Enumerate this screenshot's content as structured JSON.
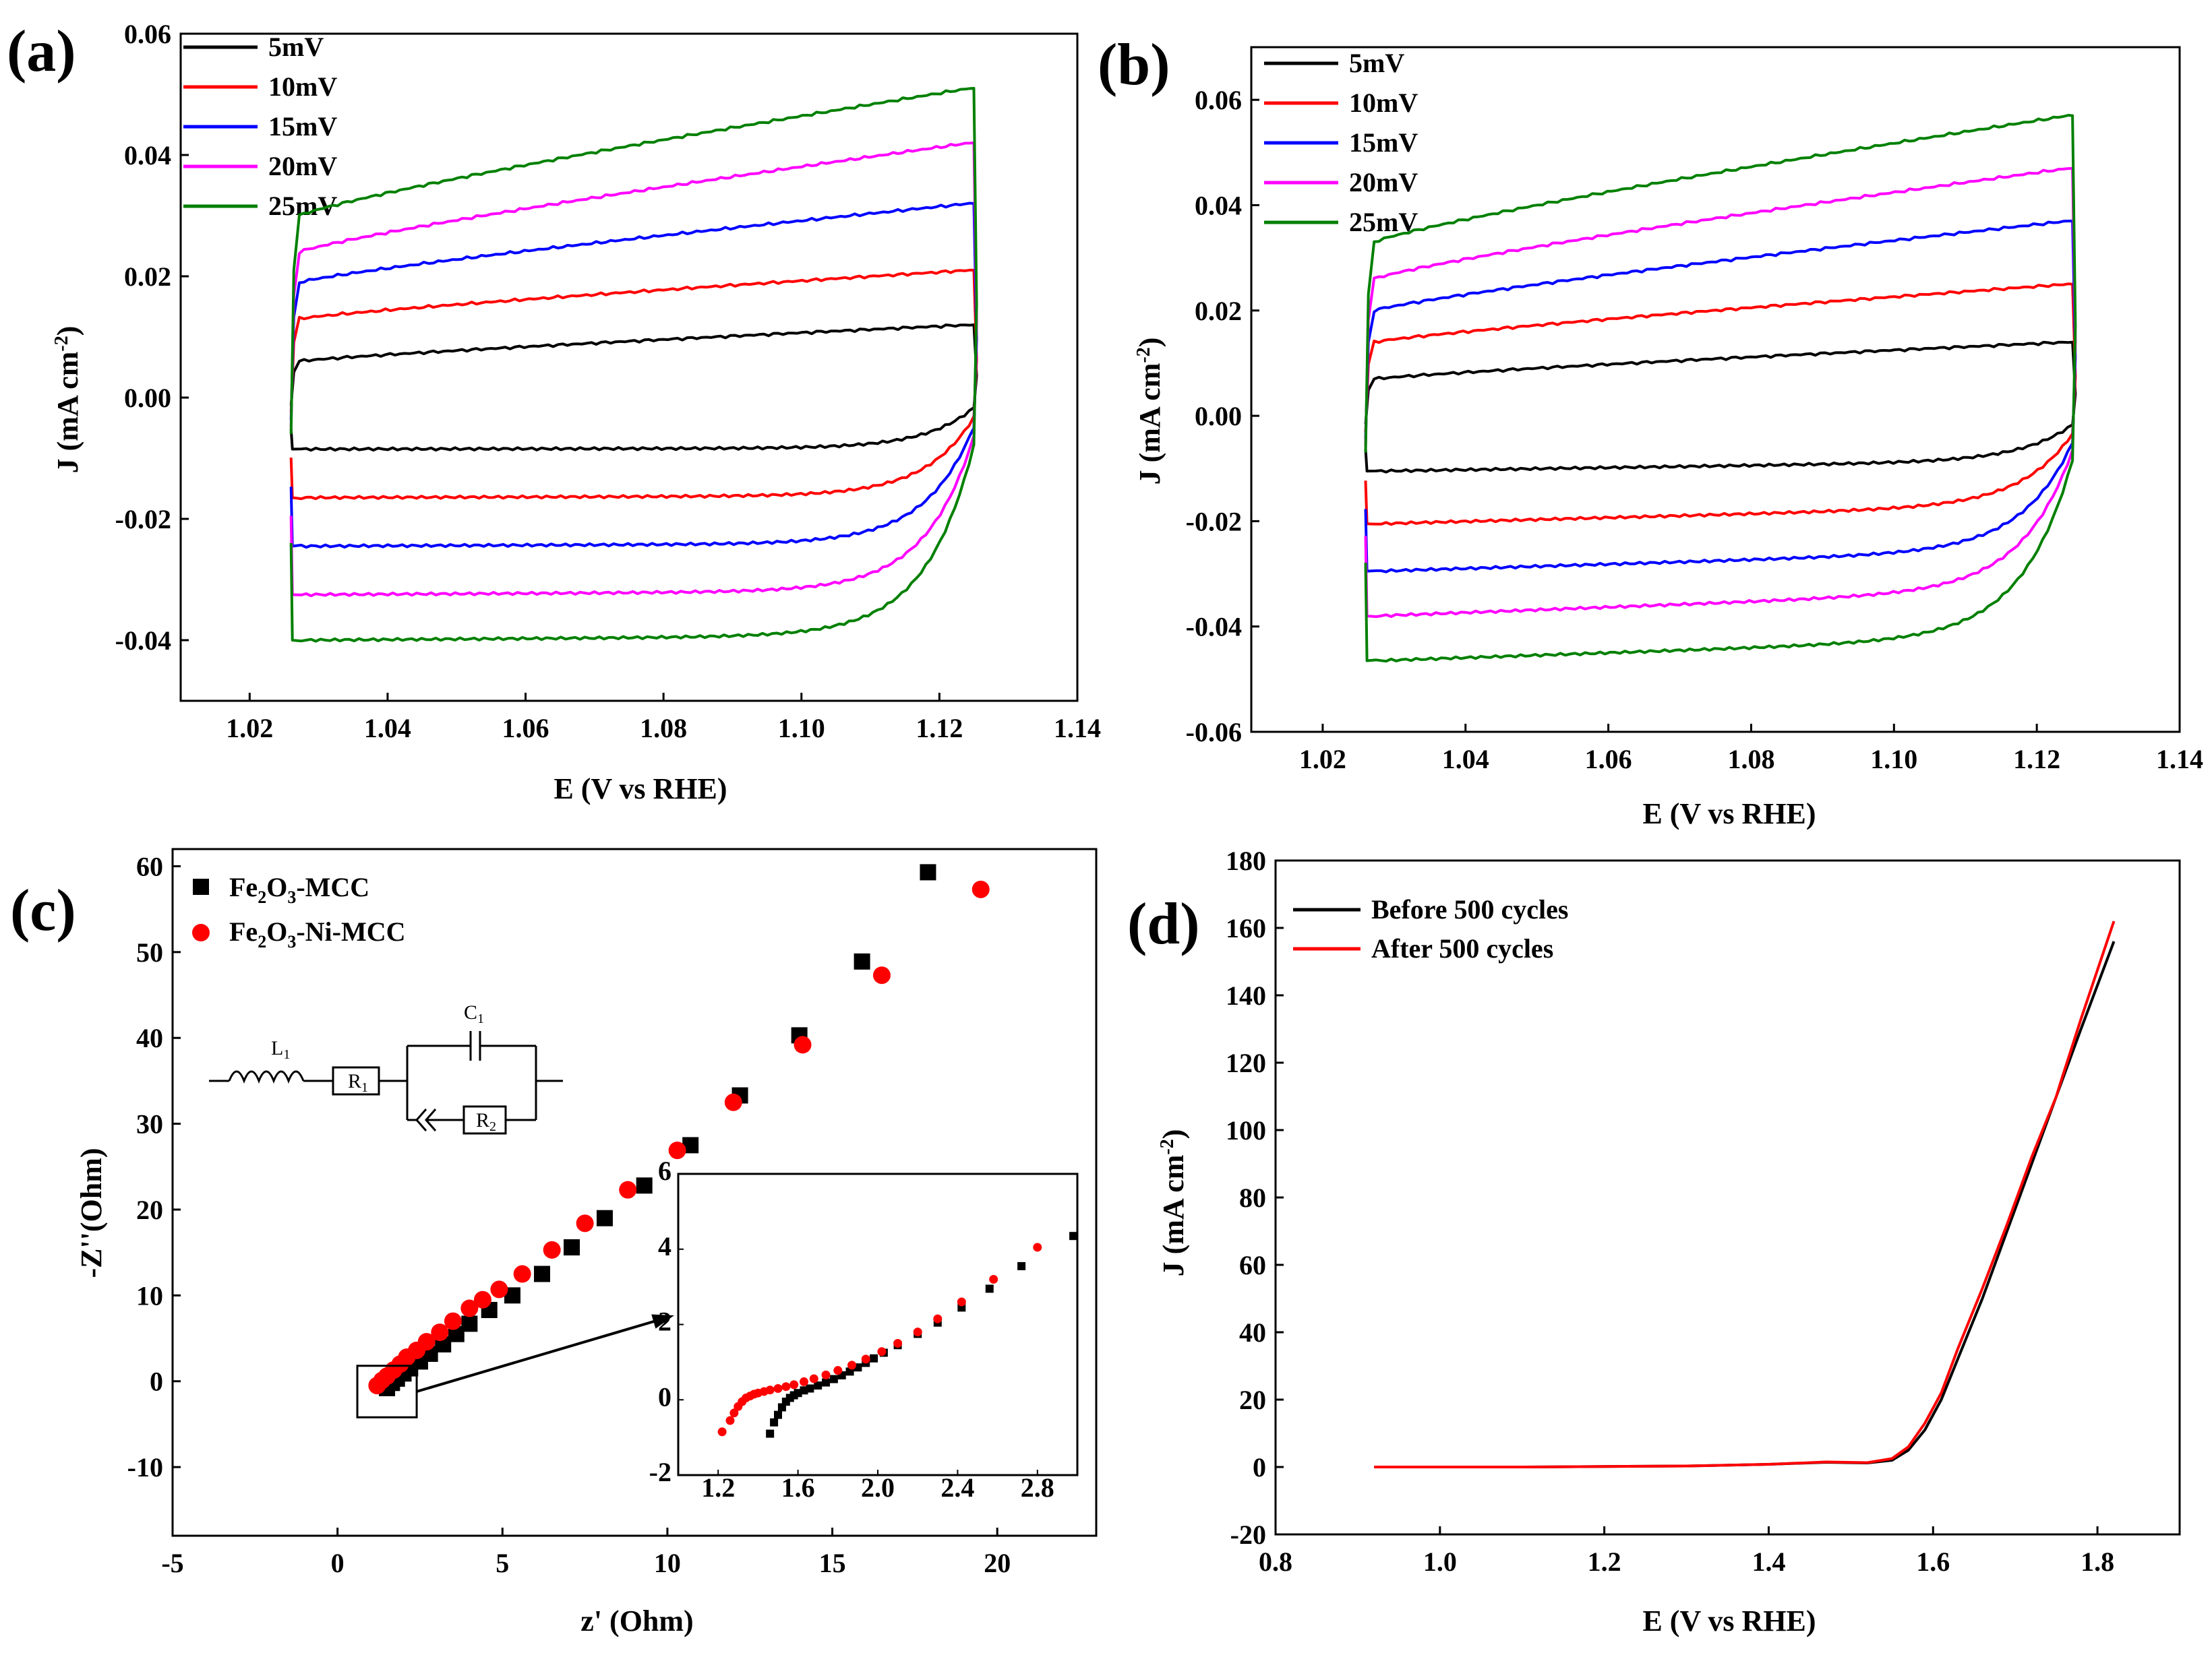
{
  "chart_data": [
    {
      "panel": "(a)",
      "type": "line",
      "xlabel": "E (V vs RHE)",
      "ylabel": "J (mA cm",
      "ylabel_sup": "-2",
      "ylabel_close": ")",
      "xlim": [
        1.01,
        1.14
      ],
      "ylim": [
        -0.05,
        0.06
      ],
      "xticks": [
        1.02,
        1.04,
        1.06,
        1.08,
        1.1,
        1.12,
        1.14
      ],
      "xtick_labels": [
        "1.02",
        "1.04",
        "1.06",
        "1.08",
        "1.10",
        "1.12",
        "1.14"
      ],
      "yticks": [
        -0.04,
        -0.02,
        0.0,
        0.02,
        0.04,
        0.06
      ],
      "ytick_labels": [
        "-0.04",
        "-0.02",
        "0.00",
        "0.02",
        "0.04",
        "0.06"
      ],
      "legend_position": "top-left",
      "x_range": [
        1.026,
        1.125
      ],
      "series": [
        {
          "name": "5mV",
          "color": "#000000",
          "anodic_start": 0.006,
          "anodic_end": 0.012,
          "cathodic": -0.0085
        },
        {
          "name": "10mV",
          "color": "#ff0000",
          "anodic_start": 0.013,
          "anodic_end": 0.021,
          "cathodic": -0.0165
        },
        {
          "name": "15mV",
          "color": "#0000ff",
          "anodic_start": 0.019,
          "anodic_end": 0.032,
          "cathodic": -0.0245
        },
        {
          "name": "20mV",
          "color": "#ff00ff",
          "anodic_start": 0.024,
          "anodic_end": 0.042,
          "cathodic": -0.0325
        },
        {
          "name": "25mV",
          "color": "#008000",
          "anodic_start": 0.03,
          "anodic_end": 0.051,
          "cathodic": -0.04
        }
      ]
    },
    {
      "panel": "(b)",
      "type": "line",
      "xlabel": "E (V vs RHE)",
      "ylabel": "J (mA cm",
      "ylabel_sup": "-2",
      "ylabel_close": ")",
      "xlim": [
        1.01,
        1.14
      ],
      "ylim": [
        -0.06,
        0.07
      ],
      "xticks": [
        1.02,
        1.04,
        1.06,
        1.08,
        1.1,
        1.12,
        1.14
      ],
      "xtick_labels": [
        "1.02",
        "1.04",
        "1.06",
        "1.08",
        "1.10",
        "1.12",
        "1.14"
      ],
      "yticks": [
        -0.06,
        -0.04,
        -0.02,
        0.0,
        0.02,
        0.04,
        0.06
      ],
      "ytick_labels": [
        "-0.06",
        "-0.04",
        "-0.02",
        "0.00",
        "0.02",
        "0.04",
        "0.06"
      ],
      "legend_position": "top-left",
      "x_range": [
        1.026,
        1.125
      ],
      "series": [
        {
          "name": "5mV",
          "color": "#000000",
          "anodic_start": 0.007,
          "anodic_end": 0.014,
          "cathodic_start": -0.0105,
          "cathodic_end": -0.0085
        },
        {
          "name": "10mV",
          "color": "#ff0000",
          "anodic_start": 0.014,
          "anodic_end": 0.025,
          "cathodic_start": -0.0205,
          "cathodic_end": -0.017
        },
        {
          "name": "15mV",
          "color": "#0000ff",
          "anodic_start": 0.02,
          "anodic_end": 0.037,
          "cathodic_start": -0.0295,
          "cathodic_end": -0.0255
        },
        {
          "name": "20mV",
          "color": "#ff00ff",
          "anodic_start": 0.026,
          "anodic_end": 0.047,
          "cathodic_start": -0.038,
          "cathodic_end": -0.033
        },
        {
          "name": "25mV",
          "color": "#008000",
          "anodic_start": 0.033,
          "anodic_end": 0.057,
          "cathodic_start": -0.0465,
          "cathodic_end": -0.042
        }
      ]
    },
    {
      "panel": "(c)",
      "type": "scatter",
      "xlabel": "z' (Ohm)",
      "ylabel": "-Z''(Ohm)",
      "xlim": [
        -5,
        23
      ],
      "ylim": [
        -18,
        62
      ],
      "xticks": [
        -5,
        0,
        5,
        10,
        15,
        20
      ],
      "xtick_labels": [
        "-5",
        "0",
        "5",
        "10",
        "15",
        "20"
      ],
      "yticks": [
        -10,
        0,
        10,
        20,
        30,
        40,
        50,
        60
      ],
      "ytick_labels": [
        "-10",
        "0",
        "10",
        "20",
        "30",
        "40",
        "50",
        "60"
      ],
      "legend_position": "top-left",
      "series": [
        {
          "name": "Fe2O3-MCC",
          "legend_parts": [
            "Fe",
            "2",
            "O",
            "3",
            "-MCC"
          ],
          "marker": "square",
          "color": "#000000",
          "x": [
            1.5,
            1.65,
            1.8,
            2.0,
            2.2,
            2.5,
            2.8,
            3.2,
            3.6,
            4.0,
            4.6,
            5.3,
            6.2,
            7.1,
            8.1,
            9.3,
            10.7,
            12.2,
            14.0,
            15.9,
            17.9
          ],
          "y": [
            -0.8,
            -0.2,
            0.3,
            0.9,
            1.5,
            2.3,
            3.2,
            4.3,
            5.5,
            6.7,
            8.3,
            10.0,
            12.5,
            15.6,
            19.0,
            22.8,
            27.5,
            33.3,
            40.3,
            48.9,
            59.3
          ]
        },
        {
          "name": "Fe2O3-Ni-MCC",
          "legend_parts": [
            "Fe",
            "2",
            "O",
            "3",
            "-Ni-MCC"
          ],
          "marker": "circle",
          "color": "#ff0000",
          "x": [
            1.2,
            1.35,
            1.5,
            1.7,
            1.9,
            2.1,
            2.4,
            2.7,
            3.1,
            3.5,
            4.0,
            4.4,
            4.9,
            5.6,
            6.5,
            7.5,
            8.8,
            10.3,
            12.0,
            14.1,
            16.5,
            19.5
          ],
          "y": [
            -0.5,
            0.1,
            0.6,
            1.3,
            2.0,
            2.8,
            3.6,
            4.6,
            5.7,
            7.0,
            8.5,
            9.5,
            10.7,
            12.5,
            15.3,
            18.4,
            22.3,
            26.9,
            32.5,
            39.2,
            47.3,
            57.3
          ]
        }
      ],
      "inset": {
        "xlim": [
          1.0,
          3.0
        ],
        "ylim": [
          -2,
          6
        ],
        "xticks": [
          1.2,
          1.6,
          2.0,
          2.4,
          2.8
        ],
        "xtick_labels": [
          "1.2",
          "1.6",
          "2.0",
          "2.4",
          "2.8"
        ],
        "yticks": [
          -2,
          0,
          2,
          4,
          6
        ],
        "ytick_labels": [
          "-2",
          "0",
          "2",
          "4",
          "6"
        ],
        "black_x": [
          1.46,
          1.48,
          1.5,
          1.52,
          1.54,
          1.56,
          1.58,
          1.6,
          1.63,
          1.66,
          1.7,
          1.74,
          1.78,
          1.82,
          1.86,
          1.9,
          1.94,
          1.98,
          2.03,
          2.1,
          2.2,
          2.3,
          2.42,
          2.56,
          2.72,
          2.98
        ],
        "black_y": [
          -0.9,
          -0.6,
          -0.4,
          -0.2,
          -0.05,
          0.05,
          0.12,
          0.18,
          0.25,
          0.3,
          0.38,
          0.46,
          0.55,
          0.65,
          0.75,
          0.86,
          0.98,
          1.1,
          1.25,
          1.45,
          1.75,
          2.05,
          2.45,
          2.95,
          3.55,
          4.35
        ],
        "red_x": [
          1.22,
          1.26,
          1.28,
          1.3,
          1.32,
          1.34,
          1.36,
          1.38,
          1.4,
          1.43,
          1.46,
          1.5,
          1.54,
          1.58,
          1.63,
          1.68,
          1.74,
          1.8,
          1.87,
          1.94,
          2.02,
          2.1,
          2.2,
          2.3,
          2.42,
          2.58,
          2.8
        ],
        "red_y": [
          -0.85,
          -0.55,
          -0.35,
          -0.18,
          -0.05,
          0.05,
          0.1,
          0.15,
          0.18,
          0.22,
          0.26,
          0.3,
          0.35,
          0.4,
          0.48,
          0.56,
          0.66,
          0.78,
          0.92,
          1.08,
          1.28,
          1.5,
          1.8,
          2.15,
          2.6,
          3.2,
          4.05
        ]
      },
      "circuit_labels": [
        "L",
        "1",
        "R",
        "1",
        "C",
        "1",
        "R",
        "2"
      ]
    },
    {
      "panel": "(d)",
      "type": "line",
      "xlabel": "E (V vs RHE)",
      "ylabel": "J (mA cm",
      "ylabel_sup": "-2",
      "ylabel_close": ")",
      "xlim": [
        0.8,
        1.9
      ],
      "ylim": [
        -20,
        180
      ],
      "xticks": [
        0.8,
        1.0,
        1.2,
        1.4,
        1.6,
        1.8
      ],
      "xtick_labels": [
        "0.8",
        "1.0",
        "1.2",
        "1.4",
        "1.6",
        "1.8"
      ],
      "yticks": [
        -20,
        0,
        20,
        40,
        60,
        80,
        100,
        120,
        140,
        160,
        180
      ],
      "ytick_labels": [
        "-20",
        "0",
        "20",
        "40",
        "60",
        "80",
        "100",
        "120",
        "140",
        "160",
        "180"
      ],
      "legend_position": "top-left",
      "series": [
        {
          "name": "Before 500 cycles",
          "color": "#000000",
          "x": [
            0.92,
            1.1,
            1.3,
            1.4,
            1.47,
            1.52,
            1.55,
            1.57,
            1.59,
            1.61,
            1.63,
            1.66,
            1.69,
            1.72,
            1.75,
            1.78,
            1.82
          ],
          "y": [
            0,
            0,
            0.3,
            0.8,
            1.4,
            1.2,
            2,
            5,
            11,
            20,
            32,
            50,
            70,
            90,
            110,
            130,
            156
          ]
        },
        {
          "name": "After 500 cycles",
          "color": "#ff0000",
          "x": [
            0.92,
            1.1,
            1.3,
            1.4,
            1.47,
            1.52,
            1.55,
            1.57,
            1.59,
            1.61,
            1.63,
            1.66,
            1.69,
            1.72,
            1.75,
            1.755,
            1.78,
            1.82
          ],
          "y": [
            0,
            0,
            0.3,
            0.8,
            1.5,
            1.3,
            2.5,
            6,
            13,
            22,
            35,
            53,
            72,
            92,
            110,
            114,
            133,
            162
          ]
        }
      ]
    }
  ]
}
